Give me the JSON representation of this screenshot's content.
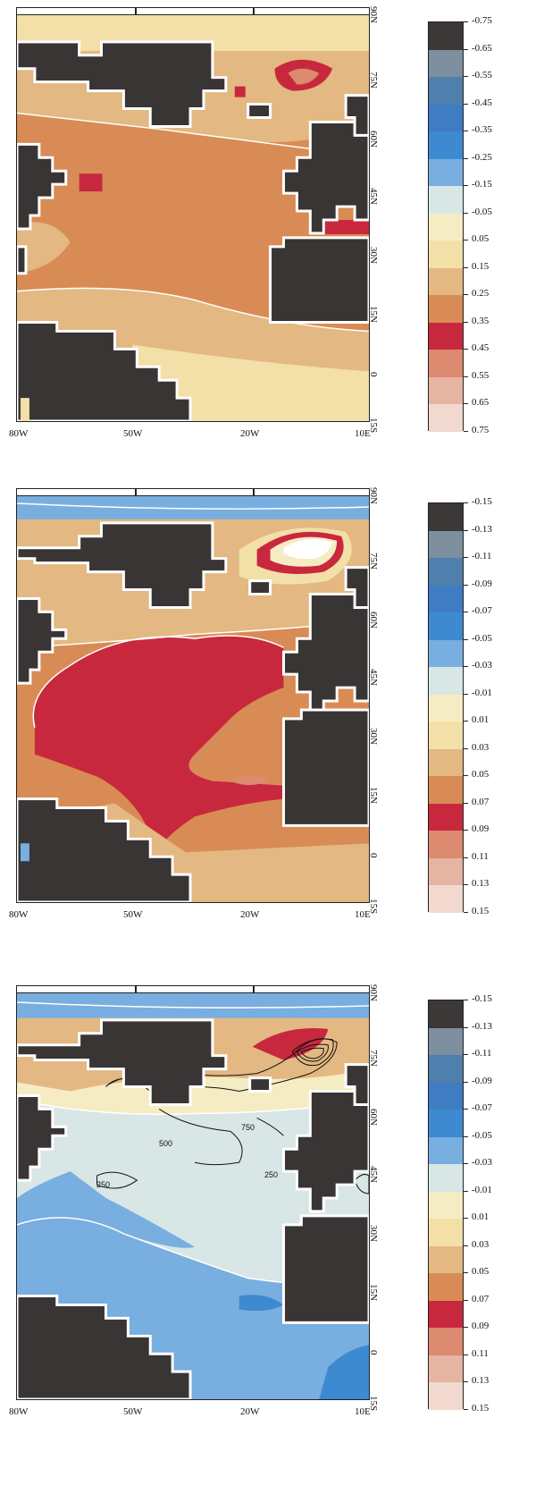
{
  "longitude_labels": [
    "80W",
    "50W",
    "20W",
    "10E"
  ],
  "latitude_labels": [
    "90N",
    "75N",
    "60N",
    "45N",
    "30N",
    "15N",
    "0",
    "15S"
  ],
  "panels": [
    {
      "colorbar_levels": [
        "-0.75",
        "-0.65",
        "-0.55",
        "-0.45",
        "-0.35",
        "-0.25",
        "-0.15",
        "-0.05",
        "0.05",
        "0.15",
        "0.25",
        "0.35",
        "0.45",
        "0.55",
        "0.65",
        "0.75"
      ],
      "contour_labels": []
    },
    {
      "colorbar_levels": [
        "-0.15",
        "-0.13",
        "-0.11",
        "-0.09",
        "-0.07",
        "-0.05",
        "-0.03",
        "-0.01",
        "0.01",
        "0.03",
        "0.05",
        "0.07",
        "0.09",
        "0.11",
        "0.13",
        "0.15"
      ],
      "contour_labels": []
    },
    {
      "colorbar_levels": [
        "-0.15",
        "-0.13",
        "-0.11",
        "-0.09",
        "-0.07",
        "-0.05",
        "-0.03",
        "-0.01",
        "0.01",
        "0.03",
        "0.05",
        "0.07",
        "0.09",
        "0.11",
        "0.13",
        "0.15"
      ],
      "contour_labels": [
        "500",
        "750",
        "250",
        "250"
      ]
    }
  ],
  "colors": {
    "land": "#3a3535",
    "palette": [
      "#3d3838",
      "#7d8e9e",
      "#4f7fad",
      "#3f7cc2",
      "#3d8ad0",
      "#79aee0",
      "#d8e6e6",
      "#f6ecc3",
      "#f3dfa8",
      "#e3b882",
      "#d98b55",
      "#c8283d",
      "#dc8a70",
      "#e6b4a2",
      "#f1d9cf"
    ]
  }
}
